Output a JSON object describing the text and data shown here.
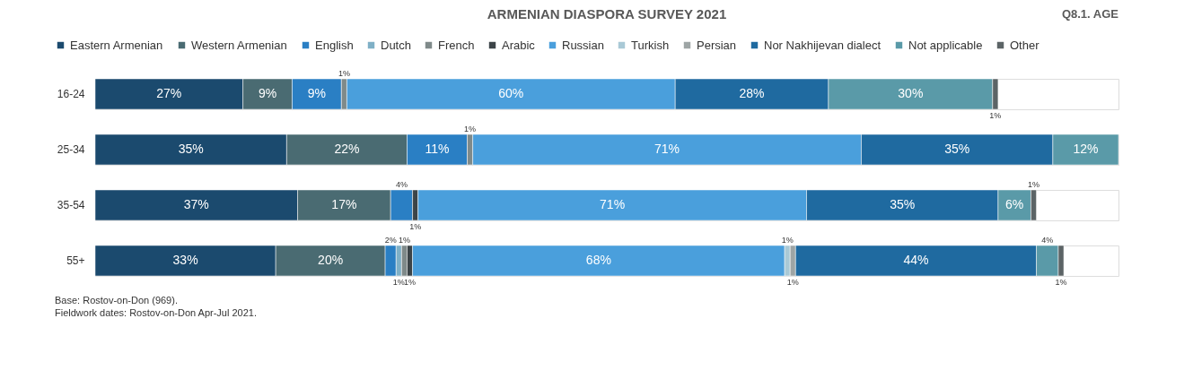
{
  "chart_data": {
    "type": "bar",
    "orientation": "horizontal",
    "stacked": true,
    "legend": "top",
    "title": "ARMENIAN DIASPORA SURVEY 2021",
    "subtitle": "Q8.1. AGE",
    "categories": [
      "16-24",
      "25-34",
      "35-54",
      "55+"
    ],
    "series": [
      {
        "name": "Eastern Armenian",
        "color": "#1b4a6e",
        "values": [
          27,
          35,
          37,
          33
        ],
        "value_labels": [
          "27%",
          "35%",
          "37%",
          "33%"
        ]
      },
      {
        "name": "Western Armenian",
        "color": "#4a6b72",
        "values": [
          9,
          22,
          17,
          20
        ],
        "value_labels": [
          "9%",
          "22%",
          "17%",
          "20%"
        ]
      },
      {
        "name": "English",
        "color": "#2a7fc4",
        "values": [
          9,
          11,
          4,
          2
        ],
        "value_labels": [
          "9%",
          "11%",
          "4%",
          "2%"
        ]
      },
      {
        "name": "Dutch",
        "color": "#7fb0c6",
        "values": [
          null,
          null,
          null,
          1
        ],
        "value_labels": [
          null,
          null,
          null,
          "1%"
        ]
      },
      {
        "name": "French",
        "color": "#7f8a8a",
        "values": [
          1,
          1,
          null,
          1
        ],
        "value_labels": [
          "1%",
          "1%",
          null,
          "1%"
        ]
      },
      {
        "name": "Arabic",
        "color": "#3c4448",
        "values": [
          null,
          null,
          1,
          1
        ],
        "value_labels": [
          null,
          null,
          "1%",
          "1%"
        ]
      },
      {
        "name": "Russian",
        "color": "#4a9fdc",
        "values": [
          60,
          71,
          71,
          68
        ],
        "value_labels": [
          "60%",
          "71%",
          "71%",
          "68%"
        ]
      },
      {
        "name": "Turkish",
        "color": "#a9c9d6",
        "values": [
          null,
          null,
          null,
          1
        ],
        "value_labels": [
          null,
          null,
          null,
          "1%"
        ]
      },
      {
        "name": "Persian",
        "color": "#9ea5a5",
        "values": [
          null,
          null,
          null,
          1
        ],
        "value_labels": [
          null,
          null,
          null,
          "1%"
        ]
      },
      {
        "name": "Nor Nakhijevan dialect",
        "color": "#1f6aa0",
        "values": [
          28,
          35,
          35,
          44
        ],
        "value_labels": [
          "28%",
          "35%",
          "35%",
          "44%"
        ]
      },
      {
        "name": "Not applicable",
        "color": "#5a9aa8",
        "values": [
          30,
          12,
          6,
          4
        ],
        "value_labels": [
          "30%",
          "12%",
          "6%",
          "4%"
        ]
      },
      {
        "name": "Other",
        "color": "#5c6466",
        "values": [
          1,
          null,
          1,
          1
        ],
        "value_labels": [
          "1%",
          null,
          "1%",
          "1%"
        ]
      }
    ],
    "annotations": [
      "Base: Rostov-on-Don (969).",
      "Fieldwork dates: Rostov-on-Don Apr-Jul 2021."
    ]
  }
}
